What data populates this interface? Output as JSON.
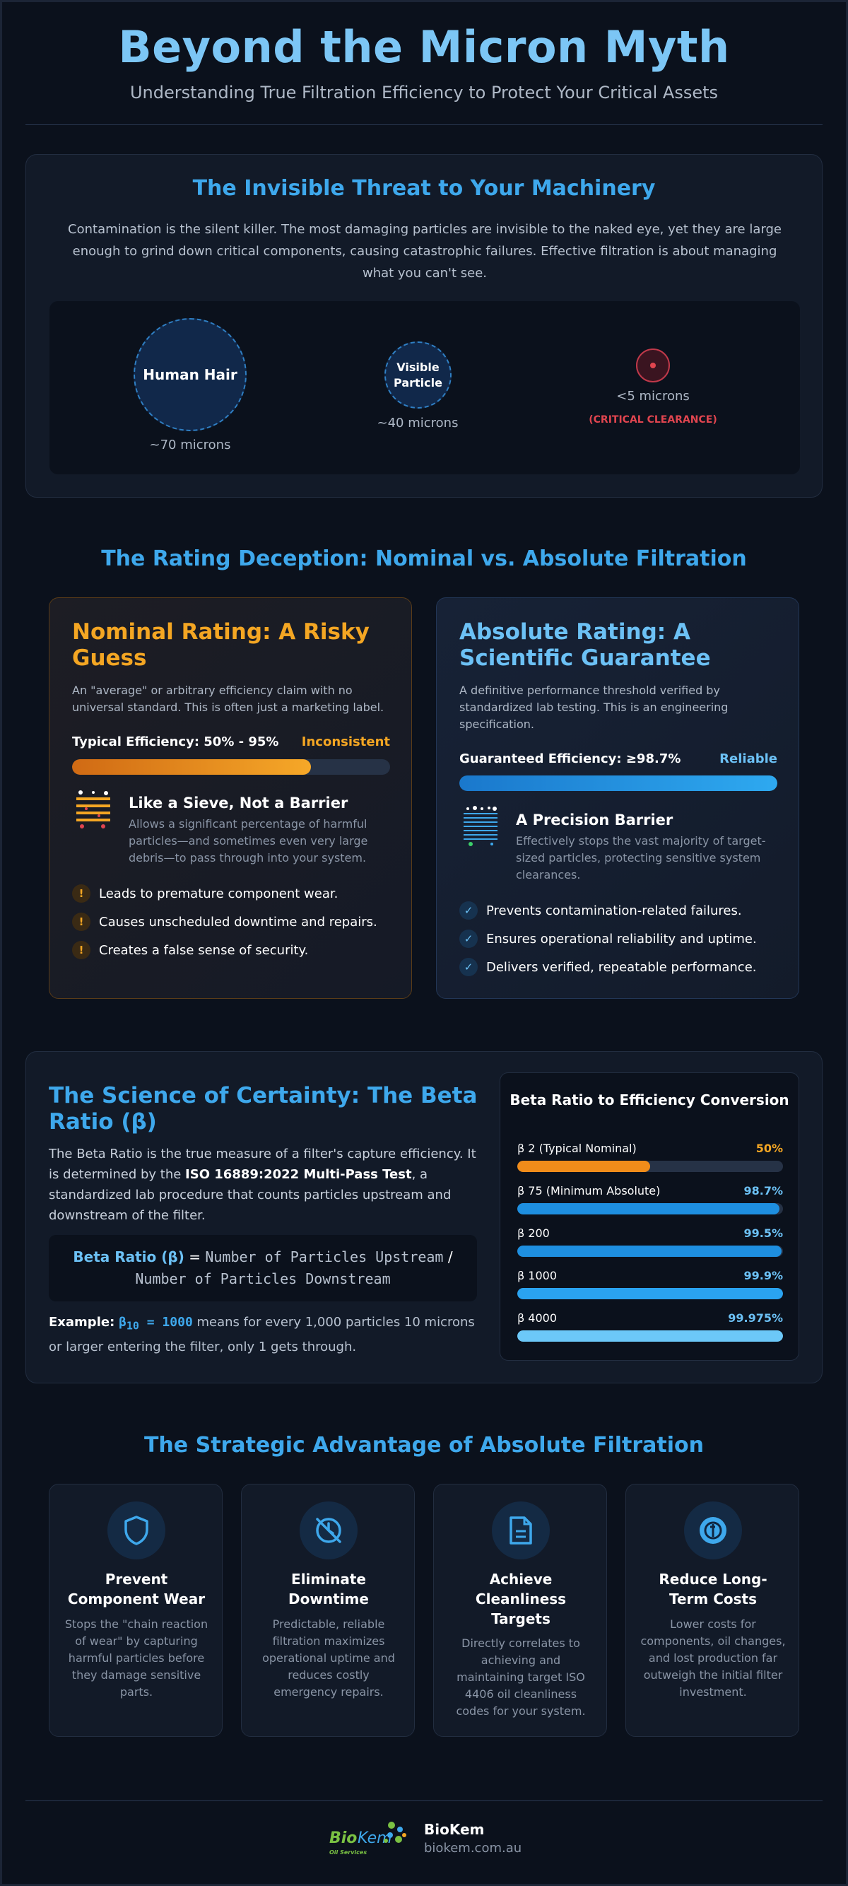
{
  "header": {
    "title": "Beyond the Micron Myth",
    "subtitle": "Understanding True Filtration Efficiency to Protect Your Critical Assets"
  },
  "threat": {
    "title": "The Invisible Threat to Your Machinery",
    "description": "Contamination is the silent killer. The most damaging particles are invisible to the naked eye, yet they are large enough to grind down critical components, causing catastrophic failures. Effective filtration is about managing what you can't see.",
    "items": [
      {
        "label": "Human Hair",
        "size": "~70 microns"
      },
      {
        "label_line1": "Visible",
        "label_line2": "Particle",
        "size": "~40 microns"
      },
      {
        "size": "<5 microns",
        "note": "(CRITICAL CLEARANCE)"
      }
    ]
  },
  "rating": {
    "title": "The Rating Deception: Nominal vs. Absolute Filtration",
    "nominal": {
      "title": "Nominal Rating: A Risky Guess",
      "description": "An \"average\" or arbitrary efficiency claim with no universal standard. This is often just a marketing label.",
      "efficiency_label": "Typical Efficiency: 50% - 95%",
      "status": "Inconsistent",
      "bar_fill": 0.75,
      "feature_title": "Like a Sieve, Not a Barrier",
      "feature_desc": "Allows a significant percentage of harmful particles—and sometimes even very large debris—to pass through into your system.",
      "bullets": [
        "Leads to premature component wear.",
        "Causes unscheduled downtime and repairs.",
        "Creates a false sense of security."
      ],
      "bullet_mark": "!"
    },
    "absolute": {
      "title": "Absolute Rating: A Scientific Guarantee",
      "description": "A definitive performance threshold verified by standardized lab testing. This is an engineering specification.",
      "efficiency_label": "Guaranteed Efficiency: ≥98.7%",
      "status": "Reliable",
      "bar_fill": 1.0,
      "feature_title": "A Precision Barrier",
      "feature_desc": "Effectively stops the vast majority of target-sized particles, protecting sensitive system clearances.",
      "bullets": [
        "Prevents contamination-related failures.",
        "Ensures operational reliability and uptime.",
        "Delivers verified, repeatable performance."
      ],
      "bullet_mark": "✓"
    }
  },
  "beta": {
    "title": "The Science of Certainty: The Beta Ratio (β)",
    "desc_before": "The Beta Ratio is the true measure of a filter's capture efficiency. It is determined by the ",
    "desc_bold": "ISO 16889:2022 Multi-Pass Test",
    "desc_after": ", a standardized lab procedure that counts particles upstream and downstream of the filter.",
    "formula_label": "Beta Ratio (β)",
    "formula_eq": " = ",
    "formula_num": "Number of Particles Upstream",
    "formula_div": " / ",
    "formula_den": "Number of Particles Downstream",
    "example_label": "Example:",
    "example_beta": "β",
    "example_sub": "10",
    "example_value": " = 1000",
    "example_text": " means for every 1,000 particles 10 microns or larger entering the filter, only 1 gets through.",
    "conversion": {
      "title": "Beta Ratio to Efficiency Conversion",
      "rows": [
        {
          "label": "β 2 (Typical Nominal)",
          "value": "50%",
          "fill": 0.5,
          "color": "#f08c1a"
        },
        {
          "label": "β 75 (Minimum Absolute)",
          "value": "98.7%",
          "fill": 0.987,
          "color": "#1e8fe0"
        },
        {
          "label": "β 200",
          "value": "99.5%",
          "fill": 0.995,
          "color": "#1e8fe0"
        },
        {
          "label": "β 1000",
          "value": "99.9%",
          "fill": 0.999,
          "color": "#2aa3f0"
        },
        {
          "label": "β 4000",
          "value": "99.975%",
          "fill": 0.99975,
          "color": "#6cc8f8"
        }
      ]
    }
  },
  "advantage": {
    "title": "The Strategic Advantage of Absolute Filtration",
    "cards": [
      {
        "title_l1": "Prevent",
        "title_l2": "Component Wear",
        "desc": "Stops the \"chain reaction of wear\" by capturing harmful particles before they damage sensitive parts.",
        "icon": "shield-icon"
      },
      {
        "title_l1": "Eliminate",
        "title_l2": "Downtime",
        "desc": "Predictable, reliable filtration maximizes operational uptime and reduces costly emergency repairs.",
        "icon": "no-clock-icon"
      },
      {
        "title_l1": "Achieve",
        "title_l2": "Cleanliness",
        "title_l3": "Targets",
        "desc": "Directly correlates to achieving and maintaining target ISO 4406 oil cleanliness codes for your system.",
        "icon": "document-icon"
      },
      {
        "title_l1": "Reduce Long-",
        "title_l2": "Term Costs",
        "desc": "Lower costs for components, oil changes, and lost production far outweigh the initial filter investment.",
        "icon": "coin-icon"
      }
    ]
  },
  "footer": {
    "logo_bio": "Bio",
    "logo_kem": "Kem",
    "logo_tag": "Oil Services",
    "company": "BioKem",
    "url": "biokem.com.au"
  },
  "colors": {
    "accent_blue": "#3ea8ec",
    "nominal_orange": "#f4a623",
    "critical_red": "#e0454f"
  }
}
